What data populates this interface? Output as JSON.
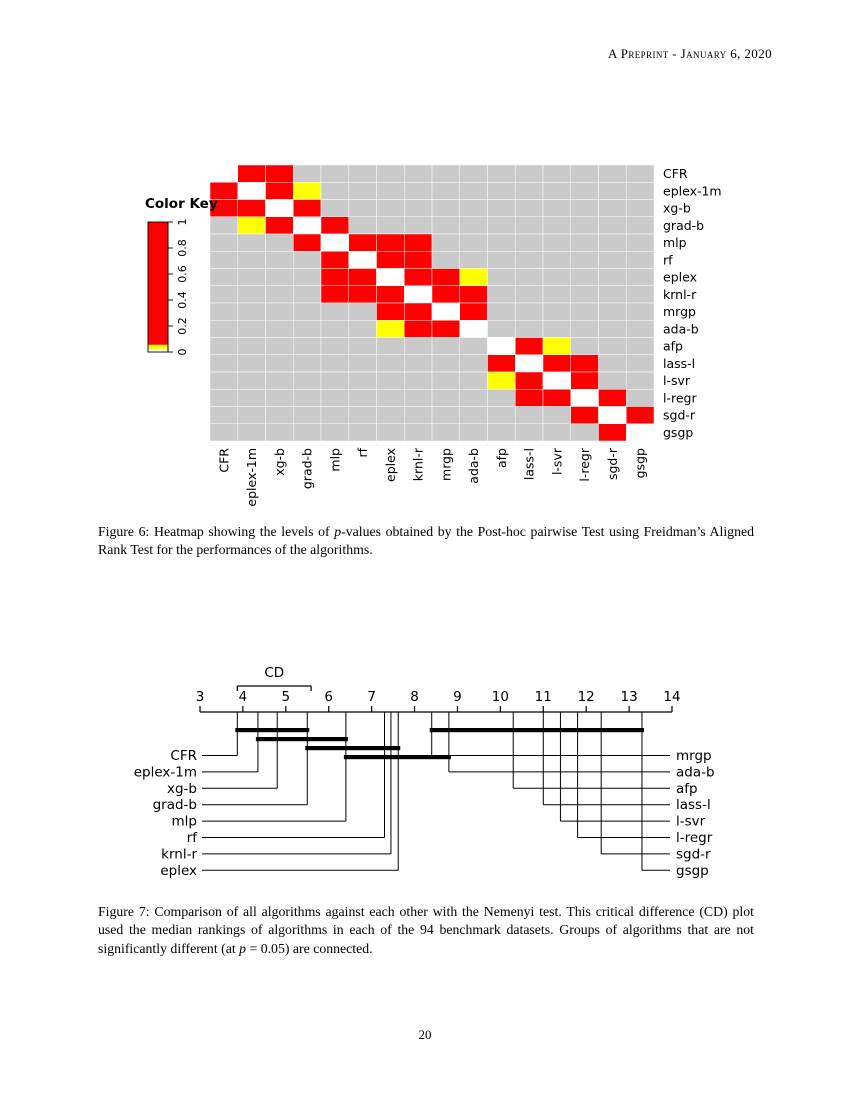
{
  "page": {
    "header": "A Preprint - January 6, 2020",
    "page_number": "20"
  },
  "figure6_caption": {
    "parts": [
      {
        "text": "Figure 6: Heatmap showing the levels of ",
        "italic": false
      },
      {
        "text": "p",
        "italic": true
      },
      {
        "text": "-values obtained by the Post-hoc pairwise Test using Freidman’s Aligned Rank Test for the performances of the algorithms.",
        "italic": false
      }
    ]
  },
  "figure7_caption": {
    "parts": [
      {
        "text": "Figure 7: Comparison of all algorithms against each other with the Nemenyi test. This critical difference (CD) plot used the median rankings of algorithms in each of the 94 benchmark datasets. Groups of algorithms that are not significantly different (at ",
        "italic": false
      },
      {
        "text": "p",
        "italic": true
      },
      {
        "text": " = 0.05) are connected.",
        "italic": false
      }
    ]
  },
  "chart_data": [
    {
      "type": "heatmap",
      "title": "",
      "description": "Pairwise p-value levels; cell codes: W=white diagonal, R=red, Y=yellow, G=gray background",
      "labels": [
        "CFR",
        "eplex-1m",
        "xg-b",
        "grad-b",
        "mlp",
        "rf",
        "eplex",
        "krnl-r",
        "mrgp",
        "ada-b",
        "afp",
        "lass-l",
        "l-svr",
        "l-regr",
        "sgd-r",
        "gsgp"
      ],
      "matrix": [
        "WRRGGGGGGGGGGGGG",
        "RWRYGGGGGGGGGGGG",
        "RRWRGGGGGGGGGGGG",
        "GYRWRGGGGGGGGGGG",
        "GGGRWRRRGGGGGGGG",
        "GGGGRWRRGGGGGGGG",
        "GGGGRRWRRYGGGGGG",
        "GGGGRRRWRRGGGGGG",
        "GGGGGGRRWRGGGGGG",
        "GGGGGGYRRWGGGGGG",
        "GGGGGGGGGGWRYGGG",
        "GGGGGGGGGGRWRRGG",
        "GGGGGGGGGGYRWRGG",
        "GGGGGGGGGGGRRWRG",
        "GGGGGGGGGGGGGRWR",
        "GGGGGGGGGGGGGGRW"
      ],
      "colors": {
        "red": "#ff0000",
        "yellow": "#ffff00",
        "gray": "#cacaca",
        "white": "#ffffff"
      },
      "legend": {
        "title": "Color Key",
        "tick_labels": [
          "0",
          "0.2",
          "0.4",
          "0.6",
          "0.8",
          "1"
        ],
        "tick_values": [
          0,
          0.2,
          0.4,
          0.6,
          0.8,
          1
        ],
        "range": [
          0,
          1
        ],
        "segments": [
          {
            "from": 0.055,
            "to": 1,
            "color": "#ff0000"
          },
          {
            "from": 0.02,
            "to": 0.055,
            "color": "#ffff00"
          },
          {
            "from": 0,
            "to": 0.02,
            "color": "#ffffff"
          }
        ]
      }
    },
    {
      "type": "cd-plot",
      "cd_label": "CD",
      "cd_interval": [
        3.87,
        5.59
      ],
      "axis": {
        "min": 3,
        "max": 14,
        "ticks": [
          3,
          4,
          5,
          6,
          7,
          8,
          9,
          10,
          11,
          12,
          13,
          14
        ]
      },
      "algorithms": [
        {
          "name": "CFR",
          "rank": 3.87,
          "side": "left"
        },
        {
          "name": "eplex-1m",
          "rank": 4.35,
          "side": "left"
        },
        {
          "name": "xg-b",
          "rank": 4.8,
          "side": "left"
        },
        {
          "name": "grad-b",
          "rank": 5.5,
          "side": "left"
        },
        {
          "name": "mlp",
          "rank": 6.4,
          "side": "left"
        },
        {
          "name": "rf",
          "rank": 7.3,
          "side": "left"
        },
        {
          "name": "krnl-r",
          "rank": 7.45,
          "side": "left"
        },
        {
          "name": "eplex",
          "rank": 7.62,
          "side": "left"
        },
        {
          "name": "mrgp",
          "rank": 8.4,
          "side": "right"
        },
        {
          "name": "ada-b",
          "rank": 8.8,
          "side": "right"
        },
        {
          "name": "afp",
          "rank": 10.3,
          "side": "right"
        },
        {
          "name": "lass-l",
          "rank": 11.0,
          "side": "right"
        },
        {
          "name": "l-svr",
          "rank": 11.4,
          "side": "right"
        },
        {
          "name": "l-regr",
          "rank": 11.8,
          "side": "right"
        },
        {
          "name": "sgd-r",
          "rank": 12.35,
          "side": "right"
        },
        {
          "name": "gsgp",
          "rank": 13.3,
          "side": "right"
        }
      ],
      "groups": [
        {
          "from": 3.87,
          "to": 5.5,
          "row": 0
        },
        {
          "from": 8.4,
          "to": 13.3,
          "row": 0
        },
        {
          "from": 4.35,
          "to": 6.4,
          "row": 1
        },
        {
          "from": 5.5,
          "to": 7.62,
          "row": 2
        },
        {
          "from": 6.4,
          "to": 8.8,
          "row": 3
        }
      ]
    }
  ]
}
